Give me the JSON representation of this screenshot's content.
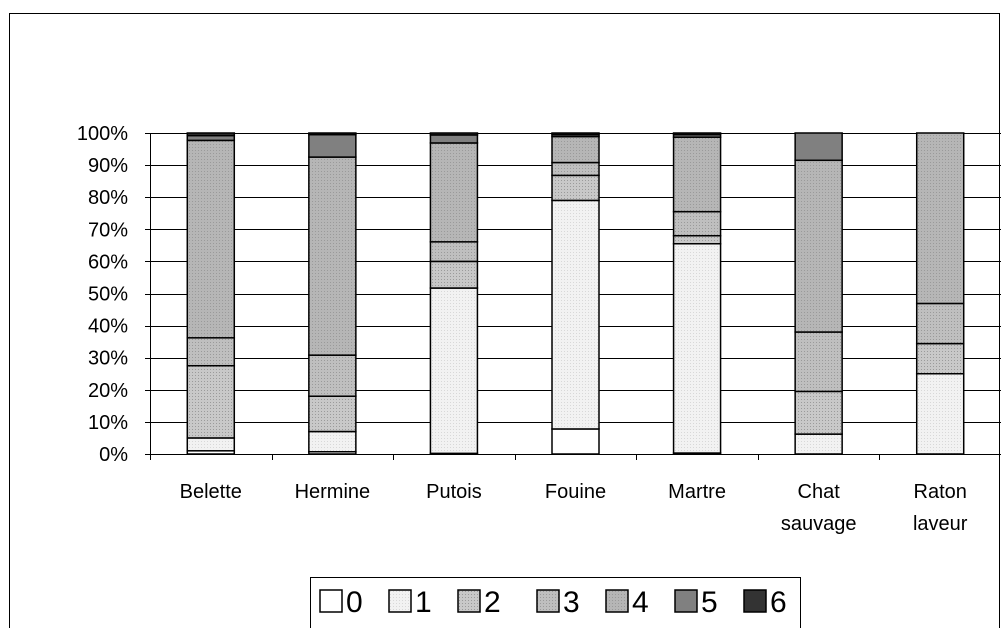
{
  "chart_data": {
    "type": "bar",
    "stacked": true,
    "percent": true,
    "categories": [
      "Belette",
      "Hermine",
      "Putois",
      "Fouine",
      "Martre",
      "Chat sauvage",
      "Raton laveur"
    ],
    "category_lines": [
      [
        "Belette"
      ],
      [
        "Hermine"
      ],
      [
        "Putois"
      ],
      [
        "Fouine"
      ],
      [
        "Martre"
      ],
      [
        "Chat",
        "sauvage"
      ],
      [
        "Raton",
        "laveur"
      ]
    ],
    "y_ticks": [
      "0%",
      "10%",
      "20%",
      "30%",
      "40%",
      "50%",
      "60%",
      "70%",
      "80%",
      "90%",
      "100%"
    ],
    "ylim": [
      0,
      100
    ],
    "grid": true,
    "legend_position": "bottom",
    "series": [
      {
        "name": "0",
        "color": "#ffffff",
        "values": [
          1.0,
          0.7,
          0.2,
          7.8,
          0.3,
          0.0,
          0.0
        ]
      },
      {
        "name": "1",
        "color": "#f2f2f2",
        "values": [
          4.0,
          6.3,
          51.5,
          71.2,
          65.2,
          6.2,
          25.0
        ]
      },
      {
        "name": "2",
        "color": "#c8c8c8",
        "values": [
          22.5,
          11.0,
          8.3,
          7.8,
          2.5,
          13.3,
          9.4
        ]
      },
      {
        "name": "3",
        "color": "#bfbfbf",
        "values": [
          8.7,
          12.8,
          6.1,
          4.0,
          7.5,
          18.5,
          12.5
        ]
      },
      {
        "name": "4",
        "color": "#b6b6b6",
        "values": [
          61.5,
          61.7,
          30.8,
          8.1,
          23.2,
          53.5,
          53.1
        ]
      },
      {
        "name": "5",
        "color": "#808080",
        "values": [
          1.5,
          7.0,
          2.5,
          0.6,
          0.8,
          8.5,
          0.0
        ]
      },
      {
        "name": "6",
        "color": "#333333",
        "values": [
          0.8,
          0.5,
          0.6,
          0.5,
          0.5,
          0.0,
          0.0
        ]
      }
    ]
  }
}
